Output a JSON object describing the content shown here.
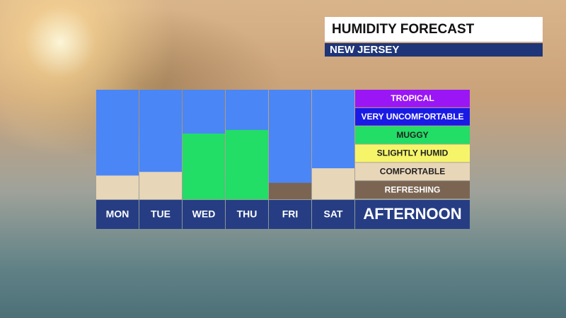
{
  "chart_data": {
    "type": "bar",
    "title": "HUMIDITY FORECAST",
    "subtitle": "NEW JERSEY",
    "categories": [
      "MON",
      "TUE",
      "WED",
      "THU",
      "FRI",
      "SAT"
    ],
    "values": [
      1.3,
      1.5,
      3.6,
      3.8,
      0.9,
      1.7
    ],
    "colors": [
      "#e8d6b8",
      "#e8d6b8",
      "#22dd66",
      "#22dd66",
      "#7b6552",
      "#e8d6b8"
    ],
    "background_color": "#4a86f5",
    "ylim": [
      0,
      6
    ],
    "x_label": "AFTERNOON",
    "levels": [
      {
        "label": "TROPICAL",
        "color": "#9b16f5"
      },
      {
        "label": "VERY UNCOMFORTABLE",
        "color": "#1a1ae6"
      },
      {
        "label": "MUGGY",
        "color": "#22dd66"
      },
      {
        "label": "SLIGHTLY HUMID",
        "color": "#f6f56a"
      },
      {
        "label": "COMFORTABLE",
        "color": "#e8d6b8"
      },
      {
        "label": "REFRESHING",
        "color": "#7b6552"
      }
    ]
  }
}
